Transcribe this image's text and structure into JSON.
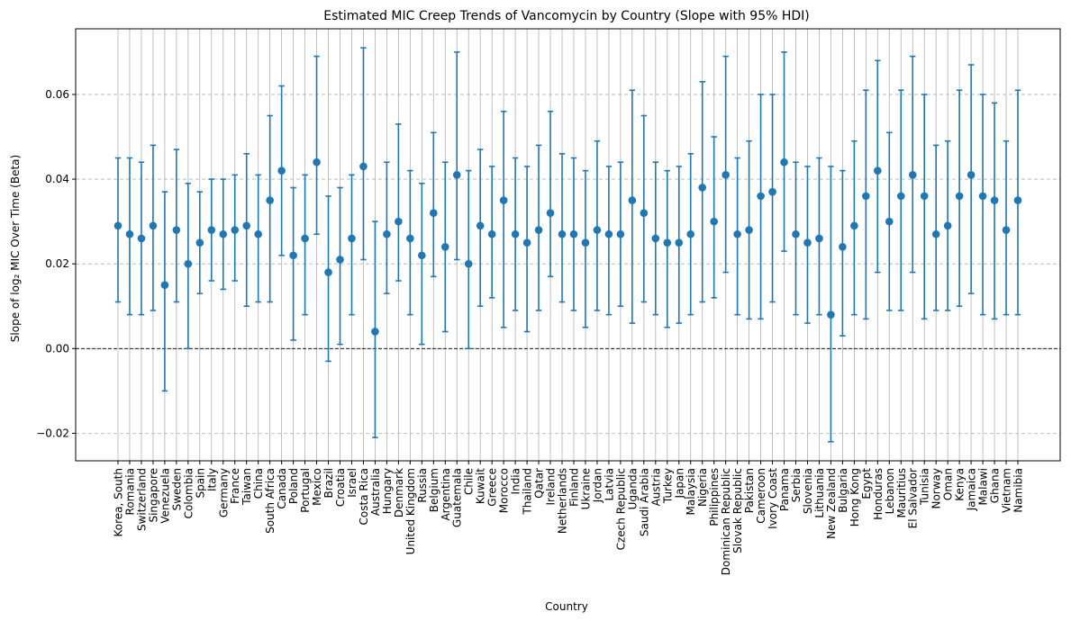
{
  "chart_data": {
    "type": "scatter",
    "title": "Estimated MIC Creep Trends of Vancomycin by Country (Slope with 95% HDI)",
    "xlabel": "Country",
    "ylabel": "Slope of log₂ MIC Over Time (Beta)",
    "ylim": [
      -0.0265,
      0.0755
    ],
    "yticks": [
      -0.02,
      0.0,
      0.02,
      0.04,
      0.06
    ],
    "ytick_labels": [
      "−0.02",
      "0.00",
      "0.02",
      "0.04",
      "0.06"
    ],
    "grid": {
      "x": "solid-light",
      "y": "dashed"
    },
    "reference_line": 0,
    "colors": {
      "series": "#1f77b4",
      "grid": "#b0b0b0",
      "reference": "#000000"
    },
    "categories": [
      "Korea, South",
      "Romania",
      "Switzerland",
      "Singapore",
      "Venezuela",
      "Sweden",
      "Colombia",
      "Spain",
      "Italy",
      "Germany",
      "France",
      "Taiwan",
      "China",
      "South Africa",
      "Canada",
      "Poland",
      "Portugal",
      "Mexico",
      "Brazil",
      "Croatia",
      "Israel",
      "Costa Rica",
      "Australia",
      "Hungary",
      "Denmark",
      "United Kingdom",
      "Russia",
      "Belgium",
      "Argentina",
      "Guatemala",
      "Chile",
      "Kuwait",
      "Greece",
      "Morocco",
      "India",
      "Thailand",
      "Qatar",
      "Ireland",
      "Netherlands",
      "Finland",
      "Ukraine",
      "Jordan",
      "Latvia",
      "Czech Republic",
      "Uganda",
      "Saudi Arabia",
      "Austria",
      "Turkey",
      "Japan",
      "Malaysia",
      "Nigeria",
      "Philippines",
      "Dominican Republic",
      "Slovak Republic",
      "Pakistan",
      "Cameroon",
      "Ivory Coast",
      "Panama",
      "Serbia",
      "Slovenia",
      "Lithuania",
      "New Zealand",
      "Bulgaria",
      "Hong Kong",
      "Egypt",
      "Honduras",
      "Lebanon",
      "Mauritius",
      "El Salvador",
      "Tunisia",
      "Norway",
      "Oman",
      "Kenya",
      "Jamaica",
      "Malawi",
      "Ghana",
      "Vietnam",
      "Namibia"
    ],
    "values": [
      0.029,
      0.027,
      0.026,
      0.029,
      0.015,
      0.028,
      0.02,
      0.025,
      0.028,
      0.027,
      0.028,
      0.029,
      0.027,
      0.035,
      0.042,
      0.022,
      0.026,
      0.044,
      0.018,
      0.021,
      0.026,
      0.043,
      0.004,
      0.027,
      0.03,
      0.026,
      0.022,
      0.032,
      0.024,
      0.041,
      0.02,
      0.029,
      0.027,
      0.035,
      0.027,
      0.025,
      0.028,
      0.032,
      0.027,
      0.027,
      0.025,
      0.028,
      0.027,
      0.027,
      0.035,
      0.032,
      0.026,
      0.025,
      0.025,
      0.027,
      0.038,
      0.03,
      0.041,
      0.027,
      0.028,
      0.036,
      0.037,
      0.044,
      0.027,
      0.025,
      0.026,
      0.008,
      0.024,
      0.029,
      0.036,
      0.042,
      0.03,
      0.036,
      0.041,
      0.036,
      0.027,
      0.029,
      0.036,
      0.041,
      0.036,
      0.035,
      0.028,
      0.035
    ],
    "lower": [
      0.011,
      0.008,
      0.008,
      0.009,
      -0.01,
      0.011,
      0.0,
      0.013,
      0.016,
      0.014,
      0.016,
      0.01,
      0.011,
      0.011,
      0.022,
      0.002,
      0.008,
      0.027,
      -0.003,
      0.001,
      0.008,
      0.021,
      -0.021,
      0.013,
      0.016,
      0.008,
      0.001,
      0.017,
      0.004,
      0.021,
      0.0,
      0.01,
      0.012,
      0.005,
      0.009,
      0.004,
      0.009,
      0.017,
      0.011,
      0.009,
      0.005,
      0.009,
      0.008,
      0.01,
      0.006,
      0.011,
      0.008,
      0.005,
      0.006,
      0.008,
      0.011,
      0.012,
      0.018,
      0.008,
      0.007,
      0.007,
      0.011,
      0.023,
      0.008,
      0.006,
      0.008,
      -0.022,
      0.003,
      0.008,
      0.007,
      0.018,
      0.009,
      0.009,
      0.018,
      0.007,
      0.009,
      0.009,
      0.01,
      0.013,
      0.008,
      0.007,
      0.008,
      0.008
    ],
    "upper": [
      0.045,
      0.045,
      0.044,
      0.048,
      0.037,
      0.047,
      0.039,
      0.037,
      0.04,
      0.04,
      0.041,
      0.046,
      0.041,
      0.055,
      0.062,
      0.038,
      0.041,
      0.069,
      0.036,
      0.038,
      0.041,
      0.071,
      0.03,
      0.044,
      0.053,
      0.042,
      0.039,
      0.051,
      0.044,
      0.07,
      0.042,
      0.047,
      0.043,
      0.056,
      0.045,
      0.043,
      0.048,
      0.056,
      0.046,
      0.045,
      0.042,
      0.049,
      0.043,
      0.044,
      0.061,
      0.055,
      0.044,
      0.042,
      0.043,
      0.046,
      0.063,
      0.05,
      0.069,
      0.045,
      0.049,
      0.06,
      0.06,
      0.07,
      0.044,
      0.043,
      0.045,
      0.043,
      0.042,
      0.049,
      0.061,
      0.068,
      0.051,
      0.061,
      0.069,
      0.06,
      0.048,
      0.049,
      0.061,
      0.067,
      0.06,
      0.058,
      0.049,
      0.061
    ]
  }
}
